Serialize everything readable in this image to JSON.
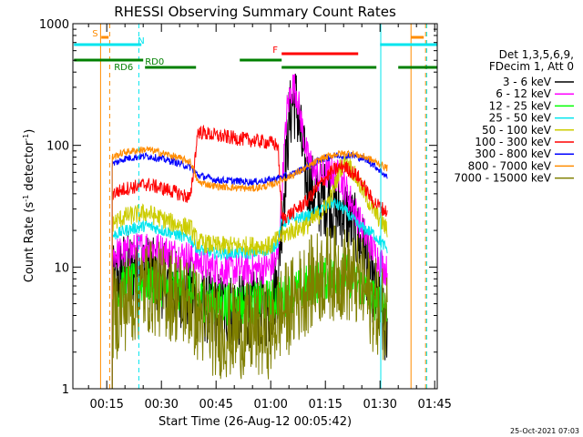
{
  "chart_data": {
    "type": "line",
    "title": "RHESSI Observing Summary Count Rates",
    "xlabel": "Start Time (26-Aug-12 00:05:42)",
    "ylabel_main": "Count Rate (s",
    "ylabel_sup1": "-1",
    "ylabel_mid": " detector",
    "ylabel_sup2": "-1",
    "ylabel_end": ")",
    "y_scale": "log",
    "ylim": [
      1,
      1000
    ],
    "xlim_minutes": [
      5.7,
      105.7
    ],
    "x_ticks": [
      {
        "label": "00:15",
        "value": 15
      },
      {
        "label": "00:30",
        "value": 30
      },
      {
        "label": "00:45",
        "value": 45
      },
      {
        "label": "01:00",
        "value": 60
      },
      {
        "label": "01:15",
        "value": 75
      },
      {
        "label": "01:30",
        "value": 90
      },
      {
        "label": "01:45",
        "value": 105
      }
    ],
    "y_ticks": [
      {
        "label": "1",
        "value": 1
      },
      {
        "label": "10",
        "value": 10
      },
      {
        "label": "100",
        "value": 100
      },
      {
        "label": "1000",
        "value": 1000
      }
    ],
    "legend_header": [
      "Det 1,3,5,6,9,",
      "FDecim 1, Att 0"
    ],
    "legend_placement": "right",
    "footer_date": "25-Oct-2021 07:03",
    "status_bars": [
      {
        "label": "S",
        "color": "#ff8c00",
        "segments": [
          [
            13.5,
            15.5
          ],
          [
            98.5,
            102
          ]
        ]
      },
      {
        "label": "N",
        "color": "#00e5ee",
        "segments": [
          [
            6,
            24.5
          ],
          [
            90,
            105.7
          ]
        ]
      },
      {
        "label": "F",
        "color": "#ff0000",
        "segments": [
          [
            63,
            84
          ]
        ]
      },
      {
        "label": "RD0",
        "color": "#008000",
        "segments": [
          [
            6,
            25
          ],
          [
            51.5,
            63
          ]
        ]
      },
      {
        "label": "RD6",
        "color": "#008000",
        "segments": [
          [
            25.5,
            39.5
          ],
          [
            63,
            89
          ],
          [
            95,
            105.7
          ]
        ]
      }
    ],
    "vlines": [
      {
        "x": 13.3,
        "color": "#ff8c00",
        "style": "solid"
      },
      {
        "x": 15.8,
        "color": "#ff8c00",
        "style": "dashed"
      },
      {
        "x": 23.8,
        "color": "#00e5ee",
        "style": "dashed"
      },
      {
        "x": 90.2,
        "color": "#00e5ee",
        "style": "solid"
      },
      {
        "x": 98.5,
        "color": "#ff8c00",
        "style": "solid"
      },
      {
        "x": 102.5,
        "color": "#ff8c00",
        "style": "dashed"
      },
      {
        "x": 102.8,
        "color": "#00e5ee",
        "style": "dashed"
      }
    ],
    "series": [
      {
        "name": "3 - 6 keV",
        "color": "#000000",
        "noise": 0.32,
        "points": [
          [
            16.5,
            7
          ],
          [
            20,
            10
          ],
          [
            26,
            9
          ],
          [
            33,
            7
          ],
          [
            38,
            6
          ],
          [
            40,
            5
          ],
          [
            45,
            4.5
          ],
          [
            55,
            4.5
          ],
          [
            60,
            4.5
          ],
          [
            62,
            8
          ],
          [
            63,
            25
          ],
          [
            65,
            150
          ],
          [
            66,
            230
          ],
          [
            67,
            220
          ],
          [
            68.5,
            100
          ],
          [
            70,
            50
          ],
          [
            73,
            35
          ],
          [
            76,
            38
          ],
          [
            78,
            28
          ],
          [
            80,
            30
          ],
          [
            83,
            20
          ],
          [
            86,
            12
          ],
          [
            88,
            7
          ],
          [
            92,
            2.5
          ]
        ]
      },
      {
        "name": "6 - 12 keV",
        "color": "#ff00ff",
        "noise": 0.14,
        "points": [
          [
            16.5,
            13
          ],
          [
            20,
            13
          ],
          [
            26,
            15
          ],
          [
            33,
            13
          ],
          [
            38,
            12
          ],
          [
            40,
            11
          ],
          [
            45,
            9.5
          ],
          [
            55,
            9.5
          ],
          [
            60,
            10
          ],
          [
            62,
            12
          ],
          [
            63,
            40
          ],
          [
            64.5,
            200
          ],
          [
            66,
            310
          ],
          [
            67,
            280
          ],
          [
            68.5,
            150
          ],
          [
            70,
            80
          ],
          [
            73,
            55
          ],
          [
            76,
            60
          ],
          [
            79,
            55
          ],
          [
            82,
            35
          ],
          [
            86,
            18
          ],
          [
            88,
            14
          ],
          [
            92,
            9
          ]
        ]
      },
      {
        "name": "12 - 25 keV",
        "color": "#00ff00",
        "noise": 0.18,
        "points": [
          [
            16.5,
            6
          ],
          [
            20,
            7
          ],
          [
            26,
            7.5
          ],
          [
            33,
            6.5
          ],
          [
            38,
            6.5
          ],
          [
            40,
            5.5
          ],
          [
            45,
            5
          ],
          [
            55,
            5
          ],
          [
            62,
            5.5
          ],
          [
            65,
            6
          ],
          [
            70,
            7
          ],
          [
            75,
            8
          ],
          [
            80,
            9
          ],
          [
            85,
            7
          ],
          [
            88,
            5.5
          ],
          [
            92,
            5
          ]
        ]
      },
      {
        "name": "25 - 50 keV",
        "color": "#00e5ee",
        "noise": 0.05,
        "points": [
          [
            16.5,
            18
          ],
          [
            20,
            20
          ],
          [
            26,
            22
          ],
          [
            33,
            19
          ],
          [
            38,
            17
          ],
          [
            40,
            14
          ],
          [
            45,
            13
          ],
          [
            55,
            13
          ],
          [
            60,
            14
          ],
          [
            62,
            16
          ],
          [
            63,
            23
          ],
          [
            66,
            25
          ],
          [
            70,
            26
          ],
          [
            74,
            30
          ],
          [
            77,
            34
          ],
          [
            80,
            30
          ],
          [
            84,
            22
          ],
          [
            88,
            19
          ],
          [
            92,
            14
          ]
        ]
      },
      {
        "name": "50 - 100 keV",
        "color": "#cccc00",
        "noise": 0.08,
        "points": [
          [
            16.5,
            23
          ],
          [
            20,
            26
          ],
          [
            26,
            28
          ],
          [
            33,
            23
          ],
          [
            38,
            21
          ],
          [
            40,
            16
          ],
          [
            45,
            15
          ],
          [
            55,
            15
          ],
          [
            60,
            15
          ],
          [
            62,
            17
          ],
          [
            63,
            18
          ],
          [
            66,
            20
          ],
          [
            70,
            22
          ],
          [
            74,
            28
          ],
          [
            77,
            40
          ],
          [
            79,
            65
          ],
          [
            81,
            75
          ],
          [
            84,
            50
          ],
          [
            88,
            30
          ],
          [
            92,
            20
          ]
        ]
      },
      {
        "name": "100 - 300 keV",
        "color": "#ff0000",
        "noise": 0.06,
        "points": [
          [
            16.5,
            40
          ],
          [
            20,
            44
          ],
          [
            26,
            48
          ],
          [
            33,
            42
          ],
          [
            38,
            37
          ],
          [
            40,
            130
          ],
          [
            45,
            120
          ],
          [
            55,
            110
          ],
          [
            60,
            105
          ],
          [
            62,
            100
          ],
          [
            63,
            25
          ],
          [
            66,
            28
          ],
          [
            70,
            35
          ],
          [
            74,
            50
          ],
          [
            77,
            62
          ],
          [
            80,
            68
          ],
          [
            84,
            55
          ],
          [
            88,
            35
          ],
          [
            92,
            28
          ]
        ]
      },
      {
        "name": "300 - 800 keV",
        "color": "#0000ff",
        "noise": 0.03,
        "points": [
          [
            16.5,
            70
          ],
          [
            20,
            78
          ],
          [
            26,
            82
          ],
          [
            33,
            74
          ],
          [
            38,
            66
          ],
          [
            40,
            57
          ],
          [
            45,
            52
          ],
          [
            55,
            50
          ],
          [
            60,
            52
          ],
          [
            63,
            55
          ],
          [
            66,
            58
          ],
          [
            70,
            67
          ],
          [
            74,
            77
          ],
          [
            78,
            83
          ],
          [
            82,
            83
          ],
          [
            86,
            77
          ],
          [
            88,
            70
          ],
          [
            92,
            55
          ]
        ]
      },
      {
        "name": "800 - 7000 keV",
        "color": "#ff8c00",
        "noise": 0.03,
        "points": [
          [
            16.5,
            80
          ],
          [
            20,
            88
          ],
          [
            26,
            93
          ],
          [
            33,
            82
          ],
          [
            38,
            73
          ],
          [
            40,
            50
          ],
          [
            45,
            46
          ],
          [
            55,
            44
          ],
          [
            60,
            47
          ],
          [
            63,
            52
          ],
          [
            66,
            57
          ],
          [
            70,
            66
          ],
          [
            74,
            78
          ],
          [
            78,
            85
          ],
          [
            82,
            86
          ],
          [
            86,
            80
          ],
          [
            88,
            75
          ],
          [
            92,
            65
          ]
        ]
      },
      {
        "name": "7000 - 15000 keV",
        "color": "#7f7f00",
        "noise": 0.4,
        "points": [
          [
            16.5,
            4
          ],
          [
            20,
            5
          ],
          [
            26,
            7
          ],
          [
            33,
            6
          ],
          [
            38,
            5
          ],
          [
            40,
            4
          ],
          [
            45,
            3
          ],
          [
            55,
            3
          ],
          [
            60,
            3
          ],
          [
            62,
            4
          ],
          [
            66,
            5
          ],
          [
            70,
            7
          ],
          [
            75,
            9
          ],
          [
            80,
            9
          ],
          [
            85,
            7
          ],
          [
            88,
            5
          ],
          [
            92,
            4
          ]
        ]
      }
    ]
  }
}
